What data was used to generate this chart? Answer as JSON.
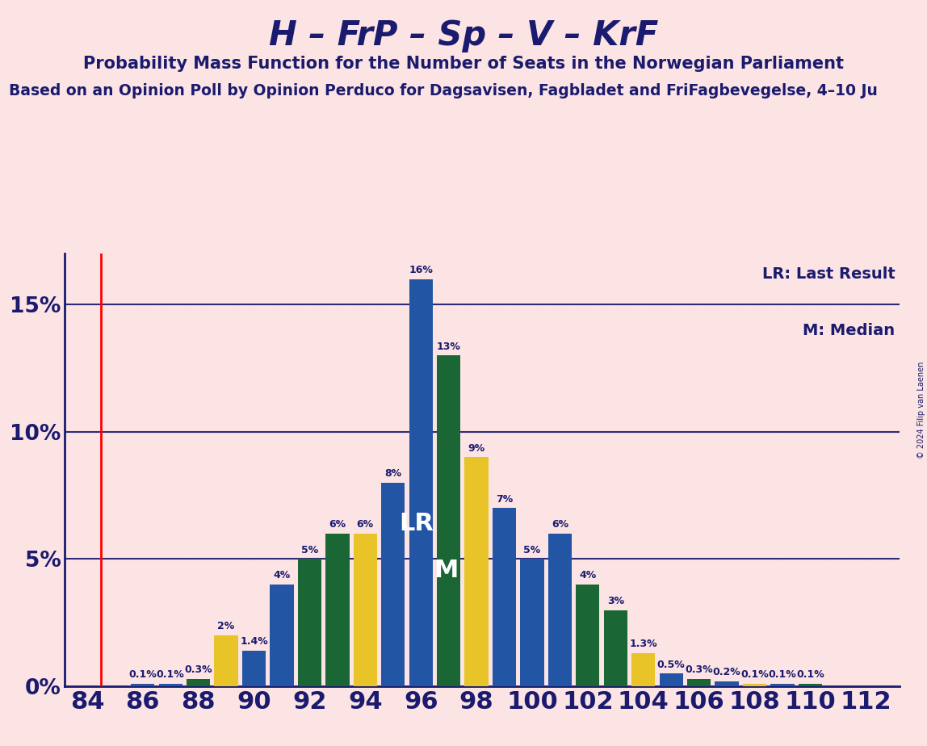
{
  "title": "H – FrP – Sp – V – KrF",
  "subtitle": "Probability Mass Function for the Number of Seats in the Norwegian Parliament",
  "subtitle2": "Based on an Opinion Poll by Opinion Perduco for Dagsavisen, Fagbladet and FriFagbevegelse, 4–10 Ju",
  "copyright": "© 2024 Filip van Laenen",
  "legend1": "LR: Last Result",
  "legend2": "M: Median",
  "background_color": "#fce4e4",
  "title_color": "#1a1a6e",
  "seats": [
    84,
    85,
    86,
    87,
    88,
    89,
    90,
    91,
    92,
    93,
    94,
    95,
    96,
    97,
    98,
    99,
    100,
    101,
    102,
    103,
    104,
    105,
    106,
    107,
    108,
    109,
    110,
    111,
    112
  ],
  "probabilities": [
    0.0,
    0.0,
    0.1,
    0.1,
    0.3,
    2.0,
    1.4,
    4.0,
    5.0,
    6.0,
    6.0,
    8.0,
    16.0,
    13.0,
    9.0,
    7.0,
    5.0,
    6.0,
    4.0,
    3.0,
    1.3,
    0.5,
    0.3,
    0.2,
    0.1,
    0.1,
    0.1,
    0.0,
    0.0
  ],
  "colors": [
    "#2255a4",
    "#2255a4",
    "#2255a4",
    "#2255a4",
    "#1a6634",
    "#e8c428",
    "#2255a4",
    "#2255a4",
    "#1a6634",
    "#1a6634",
    "#e8c428",
    "#2255a4",
    "#2255a4",
    "#1a6634",
    "#e8c428",
    "#2255a4",
    "#2255a4",
    "#2255a4",
    "#1a6634",
    "#1a6634",
    "#e8c428",
    "#2255a4",
    "#1a6634",
    "#2255a4",
    "#e8c428",
    "#2255a4",
    "#1a6634",
    "#e8c428",
    "#2255a4"
  ],
  "lr_seat": 96,
  "median_seat": 97,
  "red_line_x": 84.5,
  "ylim": [
    0,
    17
  ],
  "yticks": [
    0,
    5,
    10,
    15
  ],
  "ytick_labels": [
    "0%",
    "5%",
    "10%",
    "15%"
  ],
  "xlim": [
    83.2,
    113.2
  ],
  "bar_width": 0.85,
  "label_fontsize": 9,
  "title_fontsize": 30,
  "subtitle_fontsize": 15,
  "subtitle2_fontsize": 13.5,
  "xtick_fontsize": 22,
  "ytick_fontsize": 19,
  "legend_fontsize": 14,
  "lr_label_fontsize": 22,
  "m_label_fontsize": 22
}
